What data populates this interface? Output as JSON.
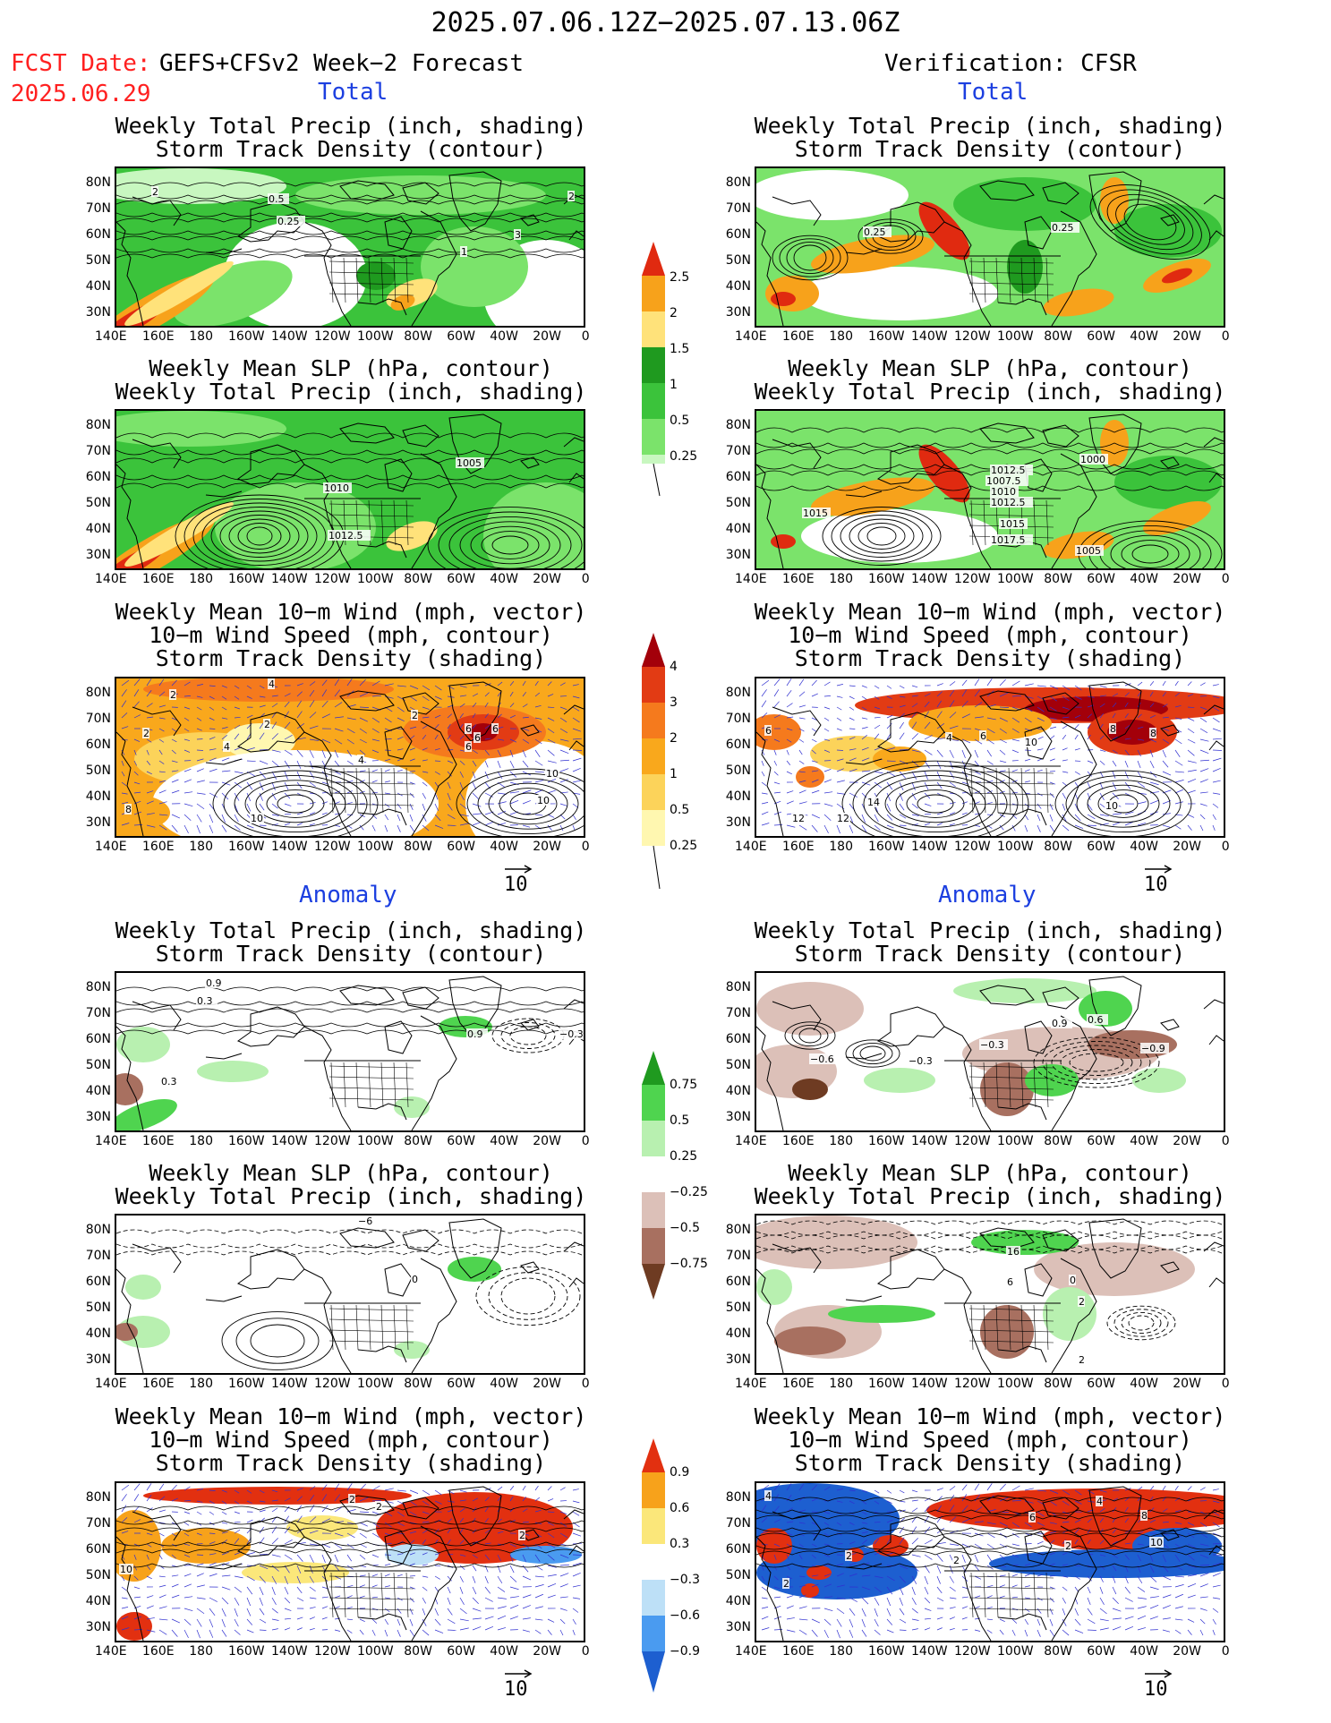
{
  "header": {
    "title": "2025.07.06.12Z−2025.07.13.06Z",
    "fcst_label": "FCST Date:",
    "fcst_model": "GEFS+CFSv2 Week−2 Forecast",
    "fcst_date": "2025.06.29",
    "verification": "Verification: CFSR"
  },
  "sections": {
    "total": "Total",
    "anomaly": "Anomaly"
  },
  "panel_titles": {
    "precip_storm": [
      "Weekly Total Precip (inch, shading)",
      "Storm Track Density (contour)"
    ],
    "slp_precip": [
      "Weekly Mean SLP (hPa, contour)",
      "Weekly Total Precip (inch, shading)"
    ],
    "wind_storm": [
      "Weekly Mean 10−m Wind (mph, vector)",
      "10−m Wind Speed (mph, contour)",
      "Storm Track Density (shading)"
    ]
  },
  "axes": {
    "lat_labels": [
      "80N",
      "70N",
      "60N",
      "50N",
      "40N",
      "30N"
    ],
    "lon_labels": [
      "140E",
      "160E",
      "180",
      "160W",
      "140W",
      "120W",
      "100W",
      "80W",
      "60W",
      "40W",
      "20W",
      "0"
    ]
  },
  "colorbars": {
    "total_precip": [
      "2.5",
      "2",
      "1.5",
      "1",
      "0.5",
      "0.25"
    ],
    "total_storm": [
      "4",
      "3",
      "2",
      "1",
      "0.5",
      "0.25"
    ],
    "anom_precip": [
      "0.75",
      "0.5",
      "0.25",
      "−0.25",
      "−0.5",
      "−0.75"
    ],
    "anom_storm": [
      "0.9",
      "0.6",
      "0.3",
      "−0.3",
      "−0.6",
      "−0.9"
    ]
  },
  "vector_ref": "10",
  "colors": {
    "red_label": "#ff2020",
    "section_blue": "#1c3fe0",
    "precip_scale": [
      "#c8f7c0",
      "#7be36b",
      "#3bc33b",
      "#1f9a1f",
      "#ffe27a",
      "#f7a21b",
      "#e02a10"
    ],
    "storm_scale": [
      "#fff7b0",
      "#fcd35a",
      "#f9a81c",
      "#f57a1d",
      "#e23b14",
      "#a3000a"
    ],
    "anom_precip_scale": [
      "#6e3b22",
      "#a87060",
      "#dcc0b8",
      "#ffffff",
      "#b8f0b0",
      "#4fd44f",
      "#1f9a1f"
    ],
    "anom_storm_scale": [
      "#1d5fd0",
      "#4a9bf0",
      "#bde0f7",
      "#ffffff",
      "#fbe77a",
      "#f7a21b",
      "#e23010"
    ]
  },
  "contour_labels": {
    "p1L": [
      "2",
      "0.5",
      "0.25",
      "1",
      "3",
      "2"
    ],
    "p1R": [
      "0.25",
      "0.25"
    ],
    "p2L": [
      "1005",
      "1010",
      "1012.5"
    ],
    "p2R": [
      "1015",
      "1012.5",
      "1007.5",
      "1010",
      "1012.5",
      "1015",
      "1017.5",
      "1005",
      "1000"
    ],
    "p3L": [
      "2",
      "4",
      "2",
      "4",
      "2",
      "4",
      "2",
      "6",
      "6",
      "6",
      "6",
      "10",
      "10",
      "10",
      "8"
    ],
    "p3R": [
      "6",
      "4",
      "6",
      "10",
      "8",
      "8",
      "12",
      "12",
      "14",
      "10"
    ],
    "p4L": [
      "0.9",
      "0.3",
      "0.9",
      "−0.3",
      "0.3"
    ],
    "p4R": [
      "0.9",
      "0.6",
      "−0.6",
      "−0.3",
      "−0.3",
      "−0.9"
    ],
    "p5L": [
      "−6",
      "0"
    ],
    "p5R": [
      "16",
      "6",
      "0",
      "2",
      "2"
    ],
    "p6L": [
      "2",
      "2",
      "2",
      "10"
    ],
    "p6R": [
      "4",
      "6",
      "4",
      "2",
      "8",
      "10",
      "2",
      "2",
      "2"
    ]
  }
}
